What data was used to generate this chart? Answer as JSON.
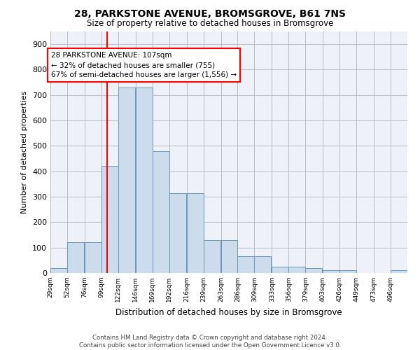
{
  "title": "28, PARKSTONE AVENUE, BROMSGROVE, B61 7NS",
  "subtitle": "Size of property relative to detached houses in Bromsgrove",
  "xlabel": "Distribution of detached houses by size in Bromsgrove",
  "ylabel": "Number of detached properties",
  "bar_color": "#ccdcec",
  "bar_edge_color": "#6699bb",
  "background_color": "#eef2f8",
  "grid_color": "#bbbbcc",
  "annotation_line_color": "red",
  "property_size": 107,
  "annotation_text_line1": "28 PARKSTONE AVENUE: 107sqm",
  "annotation_text_line2": "← 32% of detached houses are smaller (755)",
  "annotation_text_line3": "67% of semi-detached houses are larger (1,556) →",
  "bin_labels": [
    "29sqm",
    "52sqm",
    "76sqm",
    "99sqm",
    "122sqm",
    "146sqm",
    "169sqm",
    "192sqm",
    "216sqm",
    "239sqm",
    "263sqm",
    "286sqm",
    "309sqm",
    "333sqm",
    "356sqm",
    "379sqm",
    "403sqm",
    "426sqm",
    "449sqm",
    "473sqm",
    "496sqm"
  ],
  "bin_left_edges": [
    29,
    52,
    76,
    99,
    122,
    146,
    169,
    192,
    216,
    239,
    263,
    286,
    309,
    333,
    356,
    379,
    403,
    426,
    449,
    473,
    496
  ],
  "bin_width": 23,
  "bar_heights": [
    20,
    120,
    120,
    420,
    730,
    730,
    480,
    315,
    315,
    130,
    130,
    65,
    65,
    25,
    25,
    20,
    10,
    10,
    0,
    0,
    10
  ],
  "ylim": [
    0,
    950
  ],
  "yticks": [
    0,
    100,
    200,
    300,
    400,
    500,
    600,
    700,
    800,
    900
  ],
  "footer_line1": "Contains HM Land Registry data © Crown copyright and database right 2024.",
  "footer_line2": "Contains public sector information licensed under the Open Government Licence v3.0."
}
